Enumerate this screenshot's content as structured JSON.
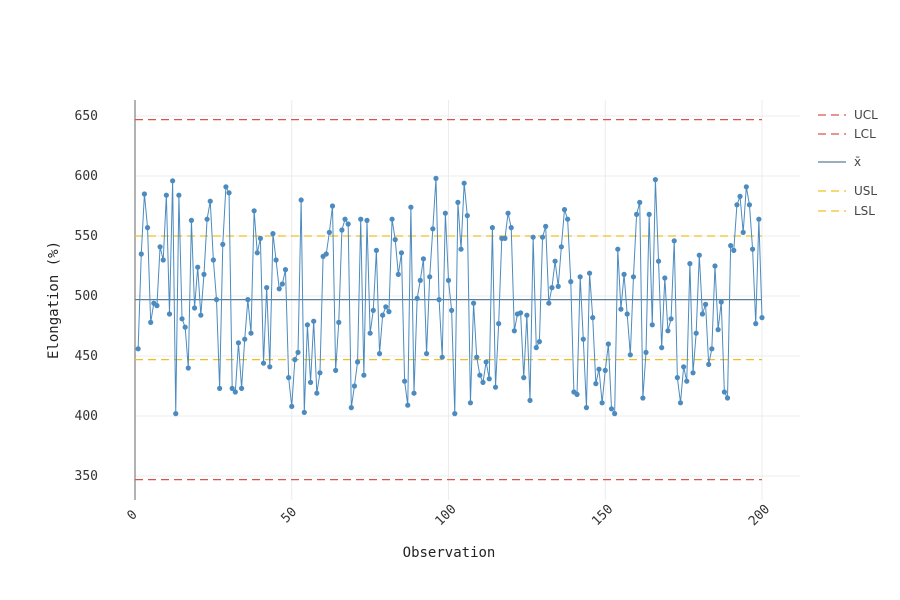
{
  "chart_data": {
    "type": "line",
    "xlabel": "Observation",
    "ylabel": "Elongation (%)",
    "xlim": [
      0,
      200
    ],
    "ylim": [
      330,
      665
    ],
    "x_ticks": [
      0,
      50,
      100,
      150,
      200
    ],
    "y_ticks": [
      350,
      400,
      450,
      500,
      550,
      600,
      650
    ],
    "grid": true,
    "legend_position": "right",
    "colors": {
      "series": "#4c8bbf",
      "center": "#5b7f99",
      "control": "#d9534f",
      "spec": "#f0c020"
    },
    "reference_lines": [
      {
        "key": "UCL",
        "label": "UCL",
        "value": 647,
        "style": "dashed",
        "color": "#d9534f"
      },
      {
        "key": "LCL",
        "label": "LCL",
        "value": 347,
        "style": "dashed",
        "color": "#d9534f"
      },
      {
        "key": "CL",
        "label": "x̄",
        "value": 497,
        "style": "solid",
        "color": "#5b7f99"
      },
      {
        "key": "USL",
        "label": "USL",
        "value": 550,
        "style": "dashed",
        "color": "#f0c020"
      },
      {
        "key": "LSL",
        "label": "LSL",
        "value": 447,
        "style": "dashed",
        "color": "#f0c020"
      }
    ],
    "series": [
      {
        "values": [
          456,
          535,
          585,
          557,
          478,
          494,
          492,
          541,
          530,
          584,
          485,
          596,
          402,
          584,
          481,
          474,
          440,
          563,
          490,
          524,
          484,
          518,
          564,
          579,
          530,
          497,
          423,
          543,
          591,
          586,
          423,
          420,
          461,
          423,
          464,
          497,
          469,
          571,
          536,
          548,
          444,
          507,
          441,
          552,
          530,
          506,
          510,
          522,
          432,
          408,
          447,
          453,
          580,
          403,
          476,
          428,
          479,
          419,
          436,
          533,
          535,
          553,
          575,
          438,
          478,
          555,
          564,
          560,
          407,
          425,
          445,
          564,
          434,
          563,
          469,
          488,
          538,
          452,
          484,
          491,
          487,
          564,
          547,
          518,
          536,
          429,
          409,
          574,
          419,
          498,
          513,
          531,
          452,
          516,
          556,
          598,
          497,
          449,
          569,
          513,
          488,
          402,
          578,
          539,
          594,
          567,
          411,
          494,
          449,
          434,
          428,
          445,
          431,
          557,
          424,
          477,
          548,
          548,
          569,
          557,
          471,
          485,
          486,
          432,
          484,
          413,
          549,
          457,
          462,
          549,
          558,
          494,
          507,
          529,
          508,
          541,
          572,
          564,
          512,
          420,
          418,
          516,
          464,
          407,
          519,
          482,
          427,
          439,
          411,
          438,
          460,
          406,
          402,
          539,
          489,
          518,
          485,
          451,
          516,
          568,
          578,
          415,
          453,
          568,
          476,
          597,
          529,
          457,
          515,
          471,
          481,
          546,
          432,
          411,
          441,
          429,
          527,
          436,
          469,
          534,
          485,
          493,
          443,
          456,
          525,
          472,
          495,
          420,
          415,
          542,
          538,
          576,
          583,
          553,
          591,
          576,
          539,
          477,
          564,
          482
        ]
      }
    ]
  }
}
